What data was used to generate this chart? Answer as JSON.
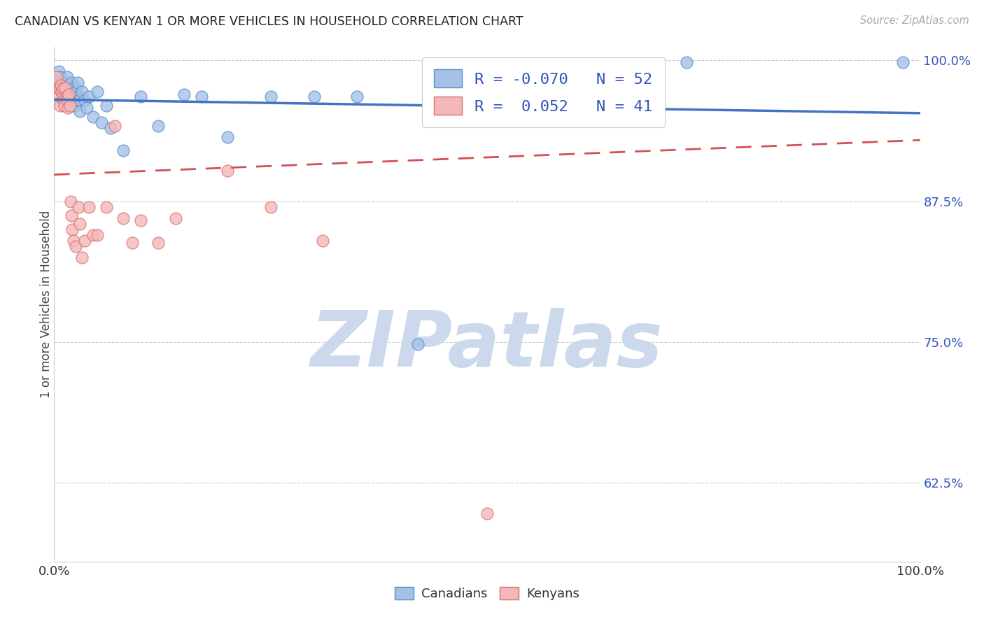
{
  "title": "CANADIAN VS KENYAN 1 OR MORE VEHICLES IN HOUSEHOLD CORRELATION CHART",
  "source": "Source: ZipAtlas.com",
  "ylabel": "1 or more Vehicles in Household",
  "x_min": 0.0,
  "x_max": 1.0,
  "y_min": 0.555,
  "y_max": 1.012,
  "y_ticks": [
    0.625,
    0.75,
    0.875,
    1.0
  ],
  "y_tick_labels": [
    "62.5%",
    "75.0%",
    "87.5%",
    "100.0%"
  ],
  "x_ticks": [
    0.0,
    1.0
  ],
  "x_tick_labels": [
    "0.0%",
    "100.0%"
  ],
  "canadian_R": -0.07,
  "canadian_N": 52,
  "kenyan_R": 0.052,
  "kenyan_N": 41,
  "canadian_color": "#a4c2e8",
  "kenyan_color": "#f4b8b8",
  "canadian_edge": "#5b8cc8",
  "kenyan_edge": "#d87070",
  "canadian_line_color": "#4472c4",
  "kenyan_line_color": "#d45050",
  "watermark_text": "ZIPatlas",
  "watermark_color": "#ccd8ec",
  "canadians_x": [
    0.005,
    0.007,
    0.008,
    0.009,
    0.01,
    0.01,
    0.01,
    0.01,
    0.012,
    0.013,
    0.015,
    0.015,
    0.016,
    0.017,
    0.018,
    0.019,
    0.02,
    0.02,
    0.02,
    0.021,
    0.022,
    0.023,
    0.025,
    0.025,
    0.026,
    0.027,
    0.028,
    0.03,
    0.03,
    0.032,
    0.035,
    0.038,
    0.04,
    0.045,
    0.05,
    0.055,
    0.06,
    0.065,
    0.08,
    0.1,
    0.12,
    0.15,
    0.17,
    0.2,
    0.25,
    0.3,
    0.35,
    0.42,
    0.47,
    0.5,
    0.73,
    0.98
  ],
  "canadians_y": [
    0.99,
    0.985,
    0.975,
    0.98,
    0.968,
    0.978,
    0.972,
    0.965,
    0.975,
    0.98,
    0.985,
    0.97,
    0.965,
    0.978,
    0.972,
    0.968,
    0.98,
    0.97,
    0.965,
    0.975,
    0.968,
    0.96,
    0.975,
    0.965,
    0.972,
    0.98,
    0.968,
    0.965,
    0.955,
    0.972,
    0.965,
    0.958,
    0.968,
    0.95,
    0.972,
    0.945,
    0.96,
    0.94,
    0.92,
    0.968,
    0.942,
    0.97,
    0.968,
    0.932,
    0.968,
    0.968,
    0.968,
    0.748,
    0.97,
    0.968,
    0.998,
    0.998
  ],
  "kenyans_x": [
    0.003,
    0.004,
    0.005,
    0.006,
    0.007,
    0.008,
    0.009,
    0.01,
    0.01,
    0.011,
    0.012,
    0.013,
    0.014,
    0.015,
    0.016,
    0.017,
    0.018,
    0.019,
    0.02,
    0.021,
    0.022,
    0.025,
    0.028,
    0.03,
    0.032,
    0.035,
    0.04,
    0.045,
    0.05,
    0.06,
    0.07,
    0.08,
    0.09,
    0.1,
    0.12,
    0.14,
    0.2,
    0.25,
    0.31,
    0.5,
    0.6
  ],
  "kenyans_y": [
    0.985,
    0.975,
    0.968,
    0.975,
    0.96,
    0.978,
    0.972,
    0.968,
    0.975,
    0.965,
    0.96,
    0.975,
    0.968,
    0.965,
    0.958,
    0.97,
    0.96,
    0.875,
    0.862,
    0.85,
    0.84,
    0.835,
    0.87,
    0.855,
    0.825,
    0.84,
    0.87,
    0.845,
    0.845,
    0.87,
    0.942,
    0.86,
    0.838,
    0.858,
    0.838,
    0.86,
    0.902,
    0.87,
    0.84,
    0.598,
    0.968
  ],
  "legend_R_can_text": "R = -0.070   N = 52",
  "legend_R_ken_text": "R =  0.052   N = 41",
  "bottom_legend_canadians": "Canadians",
  "bottom_legend_kenyans": "Kenyans"
}
